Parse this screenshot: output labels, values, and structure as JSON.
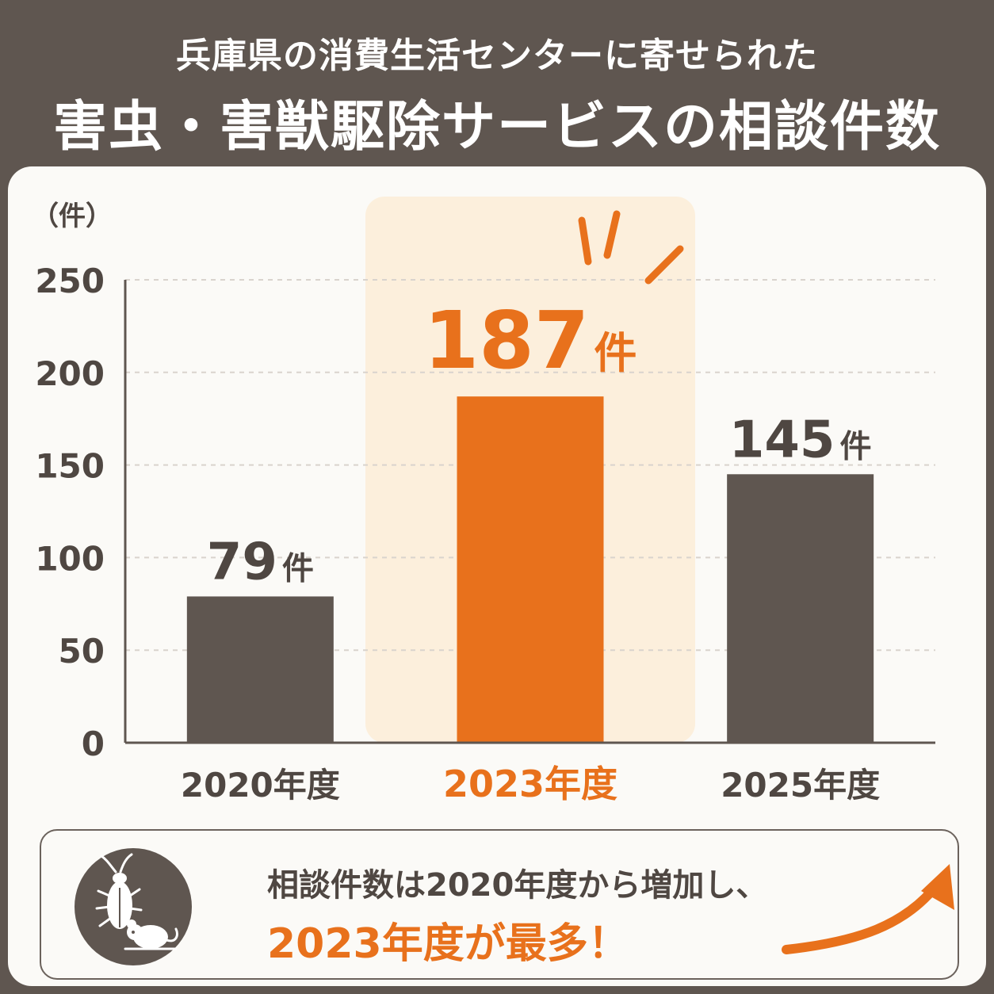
{
  "header": {
    "line1": "兵庫県の消費生活センターに寄せられた",
    "line2": "害虫・害獣駆除サービスの相談件数"
  },
  "chart_data": {
    "type": "bar",
    "unit_label": "（件）",
    "categories": [
      "2020年度",
      "2023年度",
      "2025年度"
    ],
    "values": [
      79,
      187,
      145
    ],
    "value_labels": [
      "79",
      "187",
      "145"
    ],
    "value_suffix": "件",
    "highlight_index": 1,
    "ylim": [
      0,
      250
    ],
    "yticks": [
      0,
      50,
      100,
      150,
      200,
      250
    ],
    "grid": true,
    "colors": {
      "default_bar": "#5f5650",
      "highlight_bar": "#e8711c",
      "highlight_band": "#fcefdc",
      "text": "#4f4742"
    }
  },
  "summary": {
    "line1": "相談件数は2020年度から増加し、",
    "line2": "2023年度が最多！",
    "icon": "cockroach-mouse-icon",
    "arrow": "trend-up-arrow-icon"
  }
}
